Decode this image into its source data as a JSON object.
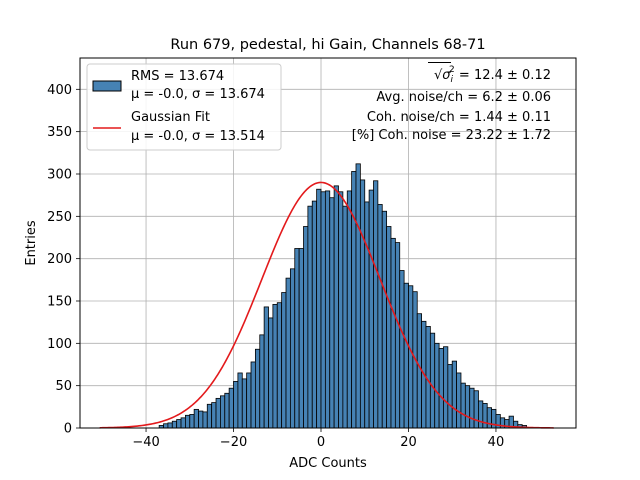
{
  "chart_data": {
    "type": "bar",
    "title": "Run 679, pedestal, hi Gain, Channels 68-71",
    "xlabel": "ADC Counts",
    "ylabel": "Entries",
    "xlim": [
      -55.1,
      58.3
    ],
    "ylim": [
      0,
      437
    ],
    "grid": true,
    "xticks": [
      -40,
      -20,
      0,
      20,
      40
    ],
    "yticks": [
      0,
      50,
      100,
      150,
      200,
      250,
      300,
      350,
      400
    ],
    "xtick_labels": [
      "−40",
      "−20",
      "0",
      "20",
      "40"
    ],
    "ytick_labels": [
      "0",
      "50",
      "100",
      "150",
      "200",
      "250",
      "300",
      "350",
      "400"
    ],
    "legend": {
      "position": "top-left",
      "entries": [
        {
          "line1": "RMS = 13.674",
          "line2": "μ = -0.0, σ = 13.674",
          "type": "histogram",
          "color": "#4682b4"
        },
        {
          "line1": "Gaussian Fit",
          "line2": "μ = -0.0, σ = 13.514",
          "type": "line",
          "color": "#e31a1c"
        }
      ]
    },
    "annotations": [
      {
        "prefix": "√",
        "sym": "σ",
        "sub": "i",
        "sup": "2",
        "text": " = 12.4 ± 0.12"
      },
      {
        "text": "Avg. noise/ch = 6.2 ± 0.06"
      },
      {
        "text": "Coh. noise/ch = 1.44 ± 0.11"
      },
      {
        "text": "[%] Coh. noise = 23.22 ± 1.72"
      }
    ],
    "histogram": {
      "bin_start": -37,
      "bin_width": 1,
      "values": [
        3,
        5,
        6,
        8,
        10,
        12,
        15,
        16,
        22,
        20,
        19,
        28,
        30,
        35,
        38,
        41,
        47,
        55,
        65,
        58,
        65,
        78,
        93,
        110,
        143,
        130,
        146,
        148,
        160,
        177,
        188,
        212,
        212,
        238,
        262,
        268,
        282,
        279,
        280,
        272,
        286,
        279,
        262,
        280,
        303,
        312,
        293,
        267,
        281,
        292,
        264,
        256,
        238,
        224,
        219,
        186,
        171,
        168,
        161,
        135,
        126,
        120,
        112,
        100,
        94,
        96,
        75,
        79,
        65,
        53,
        50,
        47,
        44,
        32,
        29,
        24,
        22,
        16,
        12,
        10,
        14,
        8,
        4,
        3
      ]
    },
    "fit": {
      "type": "gaussian",
      "mu": 0.0,
      "sigma": 13.514,
      "amplitude": 290,
      "x_range": [
        -50.6,
        53.2
      ]
    }
  }
}
